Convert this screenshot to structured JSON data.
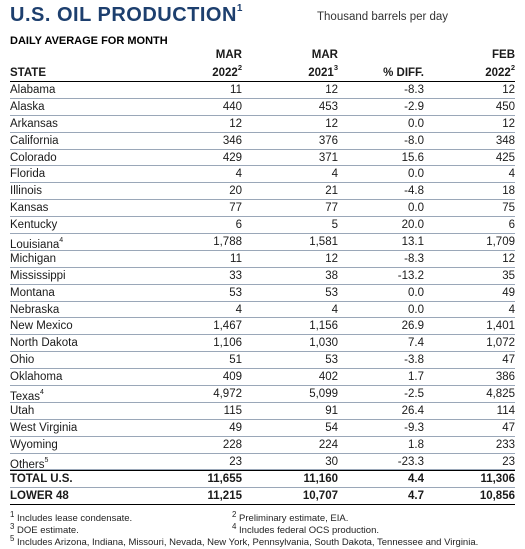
{
  "title": "U.S. OIL PRODUCTION",
  "title_sup": "1",
  "units": "Thousand barrels per day",
  "subtitle": "DAILY AVERAGE FOR MONTH",
  "headers": {
    "state": "STATE",
    "col1_line1": "MAR",
    "col1_line2": "2022",
    "col1_sup": "2",
    "col2_line1": "MAR",
    "col2_line2": "2021",
    "col2_sup": "3",
    "col3": "% DIFF.",
    "col4_line1": "FEB",
    "col4_line2": "2022",
    "col4_sup": "2"
  },
  "rows": [
    {
      "state": "Alabama",
      "sup": "",
      "mar2022": "11",
      "mar2021": "12",
      "diff": "-8.3",
      "feb2022": "12"
    },
    {
      "state": "Alaska",
      "sup": "",
      "mar2022": "440",
      "mar2021": "453",
      "diff": "-2.9",
      "feb2022": "450"
    },
    {
      "state": "Arkansas",
      "sup": "",
      "mar2022": "12",
      "mar2021": "12",
      "diff": "0.0",
      "feb2022": "12"
    },
    {
      "state": "California",
      "sup": "",
      "mar2022": "346",
      "mar2021": "376",
      "diff": "-8.0",
      "feb2022": "348"
    },
    {
      "state": "Colorado",
      "sup": "",
      "mar2022": "429",
      "mar2021": "371",
      "diff": "15.6",
      "feb2022": "425"
    },
    {
      "state": "Florida",
      "sup": "",
      "mar2022": "4",
      "mar2021": "4",
      "diff": "0.0",
      "feb2022": "4"
    },
    {
      "state": "Illinois",
      "sup": "",
      "mar2022": "20",
      "mar2021": "21",
      "diff": "-4.8",
      "feb2022": "18"
    },
    {
      "state": "Kansas",
      "sup": "",
      "mar2022": "77",
      "mar2021": "77",
      "diff": "0.0",
      "feb2022": "75"
    },
    {
      "state": "Kentucky",
      "sup": "",
      "mar2022": "6",
      "mar2021": "5",
      "diff": "20.0",
      "feb2022": "6"
    },
    {
      "state": "Louisiana",
      "sup": "4",
      "mar2022": "1,788",
      "mar2021": "1,581",
      "diff": "13.1",
      "feb2022": "1,709"
    },
    {
      "state": "Michigan",
      "sup": "",
      "mar2022": "11",
      "mar2021": "12",
      "diff": "-8.3",
      "feb2022": "12"
    },
    {
      "state": "Mississippi",
      "sup": "",
      "mar2022": "33",
      "mar2021": "38",
      "diff": "-13.2",
      "feb2022": "35"
    },
    {
      "state": "Montana",
      "sup": "",
      "mar2022": "53",
      "mar2021": "53",
      "diff": "0.0",
      "feb2022": "49"
    },
    {
      "state": "Nebraska",
      "sup": "",
      "mar2022": "4",
      "mar2021": "4",
      "diff": "0.0",
      "feb2022": "4"
    },
    {
      "state": "New Mexico",
      "sup": "",
      "mar2022": "1,467",
      "mar2021": "1,156",
      "diff": "26.9",
      "feb2022": "1,401"
    },
    {
      "state": "North Dakota",
      "sup": "",
      "mar2022": "1,106",
      "mar2021": "1,030",
      "diff": "7.4",
      "feb2022": "1,072"
    },
    {
      "state": "Ohio",
      "sup": "",
      "mar2022": "51",
      "mar2021": "53",
      "diff": "-3.8",
      "feb2022": "47"
    },
    {
      "state": "Oklahoma",
      "sup": "",
      "mar2022": "409",
      "mar2021": "402",
      "diff": "1.7",
      "feb2022": "386"
    },
    {
      "state": "Texas",
      "sup": "4",
      "mar2022": "4,972",
      "mar2021": "5,099",
      "diff": "-2.5",
      "feb2022": "4,825"
    },
    {
      "state": "Utah",
      "sup": "",
      "mar2022": "115",
      "mar2021": "91",
      "diff": "26.4",
      "feb2022": "114"
    },
    {
      "state": "West Virginia",
      "sup": "",
      "mar2022": "49",
      "mar2021": "54",
      "diff": "-9.3",
      "feb2022": "47"
    },
    {
      "state": "Wyoming",
      "sup": "",
      "mar2022": "228",
      "mar2021": "224",
      "diff": "1.8",
      "feb2022": "233"
    },
    {
      "state": "Others",
      "sup": "5",
      "mar2022": "23",
      "mar2021": "30",
      "diff": "-23.3",
      "feb2022": "23"
    }
  ],
  "totals": [
    {
      "state": "TOTAL U.S.",
      "mar2022": "11,655",
      "mar2021": "11,160",
      "diff": "4.4",
      "feb2022": "11,306"
    },
    {
      "state": "LOWER 48",
      "mar2022": "11,215",
      "mar2021": "10,707",
      "diff": "4.7",
      "feb2022": "10,856"
    }
  ],
  "footnotes": {
    "n1": "Includes lease condensate.",
    "n2": "Preliminary estimate, EIA.",
    "n3": "DOE estimate.",
    "n4": "Includes federal OCS production.",
    "n5": "Includes Arizona, Indiana, Missouri, Nevada, New York, Pennsylvania, South Dakota, Tennessee and Virginia."
  },
  "colors": {
    "title": "#1d3f6e",
    "rule": "#9aa7b8"
  }
}
